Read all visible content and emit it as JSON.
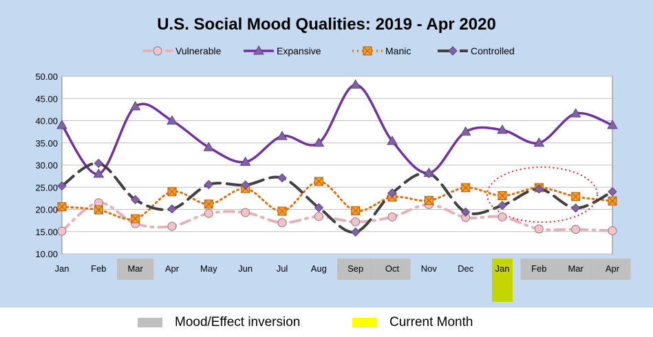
{
  "chart_data": {
    "type": "line",
    "title": "U.S. Social Mood Qualities:  2019 - Apr 2020",
    "categories": [
      "Jan",
      "Feb",
      "Mar",
      "Apr",
      "May",
      "Jun",
      "Jul",
      "Aug",
      "Sep",
      "Oct",
      "Nov",
      "Dec",
      "Jan",
      "Feb",
      "Mar",
      "Apr"
    ],
    "ylim": [
      10,
      50
    ],
    "yticks": [
      "10.00",
      "15.00",
      "20.00",
      "25.00",
      "30.00",
      "35.00",
      "40.00",
      "45.00",
      "50.00"
    ],
    "grid": true,
    "legend_position": "top",
    "series": [
      {
        "name": "Vulnerable",
        "color": "#e6b0b8",
        "marker": "circle",
        "values": [
          15.1,
          21.5,
          16.8,
          16.2,
          19.1,
          19.3,
          17.0,
          18.4,
          17.2,
          18.3,
          21.1,
          18.2,
          18.3,
          15.6,
          15.5,
          15.2
        ]
      },
      {
        "name": "Expansive",
        "color": "#7030a0",
        "marker": "triangle",
        "values": [
          39.0,
          28.0,
          43.2,
          40.0,
          34.0,
          30.7,
          36.5,
          35.0,
          48.1,
          35.4,
          28.2,
          37.5,
          37.9,
          35.0,
          41.6,
          39.0
        ]
      },
      {
        "name": "Manic",
        "color": "#e36c09",
        "marker": "square",
        "values": [
          20.6,
          19.9,
          17.9,
          24.0,
          21.2,
          24.7,
          19.6,
          26.3,
          19.7,
          22.8,
          22.0,
          24.9,
          23.1,
          24.9,
          22.9,
          21.9
        ]
      },
      {
        "name": "Controlled",
        "color": "#404040",
        "marker": "diamond",
        "values": [
          25.3,
          30.4,
          22.2,
          20.1,
          25.6,
          25.5,
          27.1,
          20.4,
          14.9,
          23.7,
          28.1,
          19.4,
          20.9,
          24.6,
          20.3,
          24.0
        ]
      }
    ],
    "highlights": {
      "inversion_months": [
        2,
        8,
        9,
        13,
        14,
        15
      ],
      "current_month": 12,
      "inversion_color": "#bfbfbf",
      "current_color": "#c6d400",
      "ellipse_color": "#e02020"
    },
    "key": [
      {
        "label": "Mood/Effect inversion",
        "color": "#bfbfbf"
      },
      {
        "label": "Current Month",
        "color": "#ffff00"
      }
    ]
  }
}
